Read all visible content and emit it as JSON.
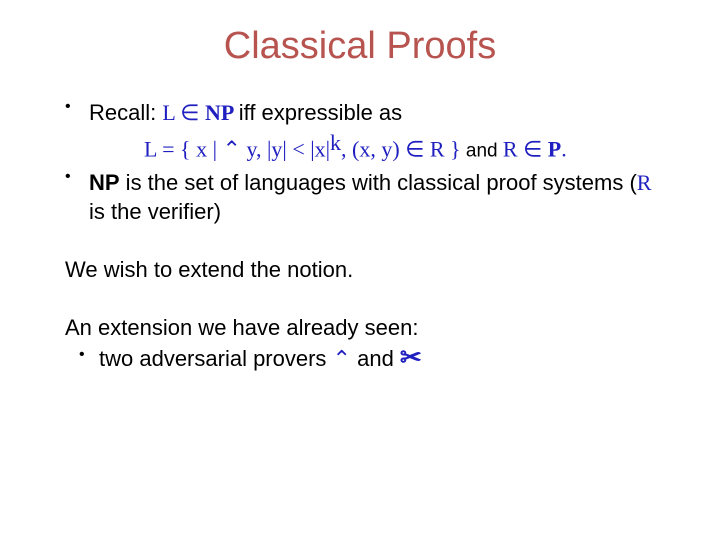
{
  "colors": {
    "title": "#b85450",
    "body": "#000000",
    "math": "#2020c0"
  },
  "fonts": {
    "title_size": 38,
    "body_size": 22,
    "math_size": 22,
    "small_size": 19
  },
  "title": "Classical Proofs",
  "bullet1": {
    "recall": "Recall:   ",
    "L": "L",
    "elem1": " ∈ ",
    "NP": "NP",
    "iff": " iff expressible as",
    "eq_L": "L = { x | ",
    "exists": "⌃",
    "eq_mid": " y, |y| < |x|",
    "sup_k": "k",
    "eq_end": ", (x, y) ∈ R }",
    "and": " and ",
    "R": "R",
    "elem2": " ∈ ",
    "P": "P",
    "dot": "."
  },
  "bullet2": {
    "np_bold": "NP",
    "pre": " is the set of languages with classical proof systems (",
    "R": "R",
    "post": " is the verifier)"
  },
  "para1": "We wish to extend the notion.",
  "para2": {
    "text": "An extension we have already seen:",
    "sub_pre": " two adversarial provers ",
    "sym1": "⌃",
    "sub_mid": " and ",
    "sym2": "✂"
  }
}
